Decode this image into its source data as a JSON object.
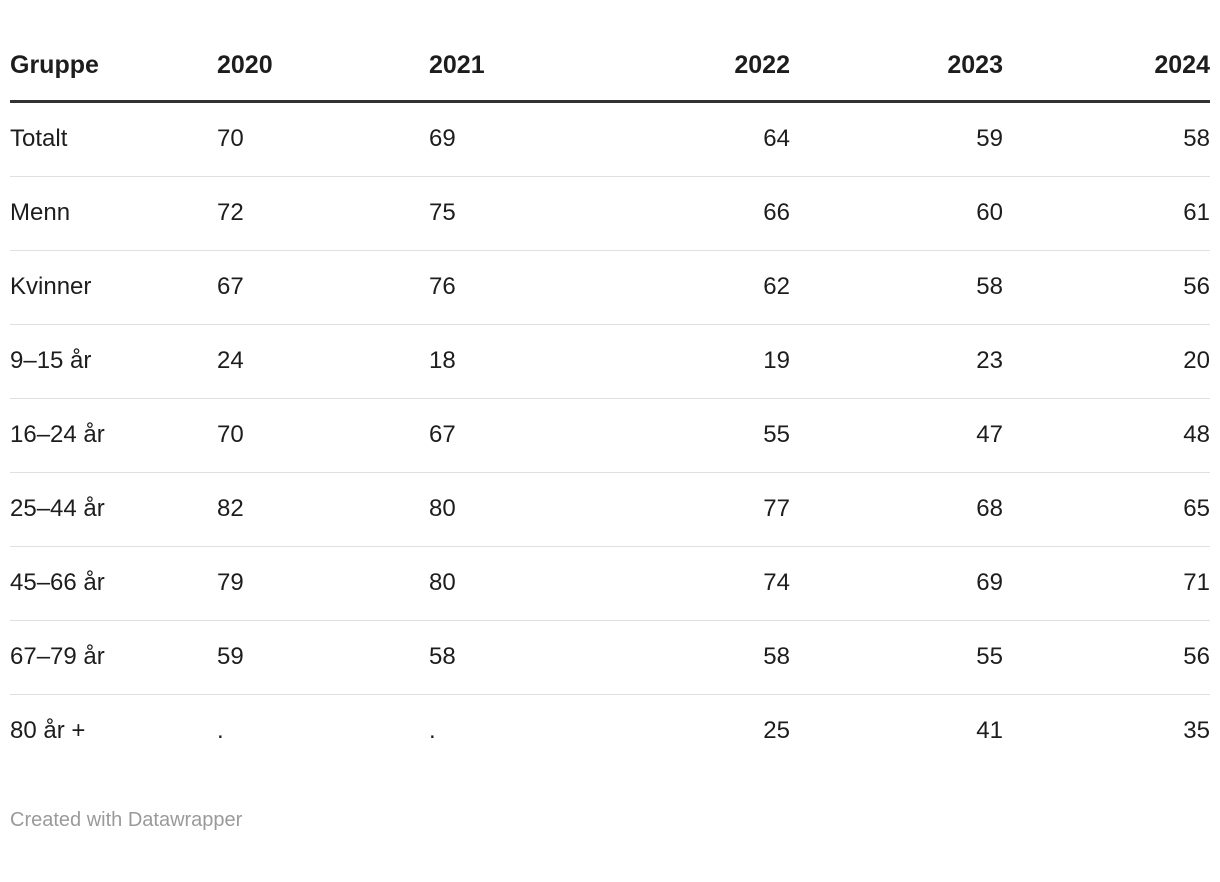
{
  "chart_data": {
    "type": "table",
    "columns": [
      "Gruppe",
      "2020",
      "2021",
      "2022",
      "2023",
      "2024"
    ],
    "column_alignments": [
      "left",
      "left",
      "left",
      "right",
      "right",
      "right"
    ],
    "rows": [
      [
        "Totalt",
        "70",
        "69",
        "64",
        "59",
        "58"
      ],
      [
        "Menn",
        "72",
        "75",
        "66",
        "60",
        "61"
      ],
      [
        "Kvinner",
        "67",
        "76",
        "62",
        "58",
        "56"
      ],
      [
        "9–15 år",
        "24",
        "18",
        "19",
        "23",
        "20"
      ],
      [
        "16–24 år",
        "70",
        "67",
        "55",
        "47",
        "48"
      ],
      [
        "25–44 år",
        "82",
        "80",
        "77",
        "68",
        "65"
      ],
      [
        "45–66 år",
        "79",
        "80",
        "74",
        "69",
        "71"
      ],
      [
        "67–79 år",
        "59",
        "58",
        "58",
        "55",
        "56"
      ],
      [
        "80 år +",
        ".",
        ".",
        "25",
        "41",
        "35"
      ]
    ],
    "missing_value_symbol": "."
  },
  "footer": {
    "attribution": "Created with Datawrapper"
  },
  "colors": {
    "background": "#ffffff",
    "text": "#1d1d1d",
    "header_rule": "#333333",
    "row_divider": "#e0e0e0",
    "attribution_text": "#9a9a9a"
  }
}
